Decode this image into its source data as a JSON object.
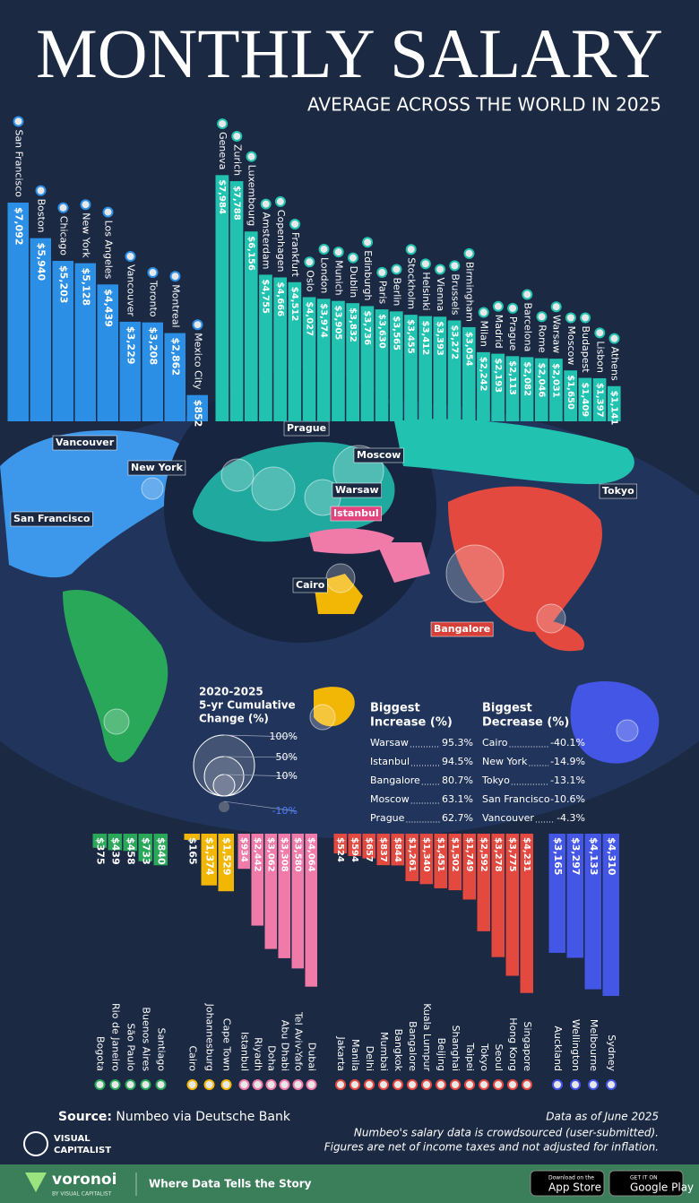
{
  "header": {
    "title": "MONTHLY SALARY",
    "subtitle": "AVERAGE ACROSS THE WORLD IN 2025"
  },
  "chart_data": [
    {
      "type": "bar",
      "color": "#2b8fe6",
      "categories": [
        "San Francisco",
        "Boston",
        "Chicago",
        "New York",
        "Los Angeles",
        "Vancouver",
        "Toronto",
        "Montreal",
        "Mexico City"
      ],
      "values": [
        7092,
        5940,
        5203,
        5128,
        4439,
        3229,
        3208,
        2862,
        852
      ],
      "value_labels": [
        "$7,092",
        "$5,940",
        "$5,203",
        "$5,128",
        "$4,439",
        "$3,229",
        "$3,208",
        "$2,862",
        "$852"
      ]
    },
    {
      "type": "bar",
      "color": "#22c2b0",
      "categories": [
        "Geneva",
        "Zurich",
        "Luxembourg",
        "Amsterdam",
        "Copenhagen",
        "Frankfurt",
        "Oslo",
        "London",
        "Munich",
        "Dublin",
        "Edinburgh",
        "Paris",
        "Berlin",
        "Stockholm",
        "Helsinki",
        "Vienna",
        "Brussels",
        "Birmingham",
        "Milan",
        "Madrid",
        "Prague",
        "Barcelona",
        "Rome",
        "Warsaw",
        "Moscow",
        "Budapest",
        "Lisbon",
        "Athens"
      ],
      "values": [
        7984,
        7788,
        6156,
        4755,
        4666,
        4512,
        4027,
        3974,
        3905,
        3832,
        3736,
        3630,
        3565,
        3455,
        3412,
        3393,
        3272,
        3054,
        2242,
        2193,
        2113,
        2082,
        2046,
        2031,
        1650,
        1409,
        1397,
        1141
      ],
      "value_labels": [
        "$7,984",
        "$7,788",
        "$6,156",
        "$4,755",
        "$4,666",
        "$4,512",
        "$4,027",
        "$3,974",
        "$3,905",
        "$3,832",
        "$3,736",
        "$3,630",
        "$3,565",
        "$3,455",
        "$3,412",
        "$3,393",
        "$3,272",
        "$3,054",
        "$2,242",
        "$2,193",
        "$2,113",
        "$2,082",
        "$2,046",
        "$2,031",
        "$1,650",
        "$1,409",
        "$1,397",
        "$1,141"
      ]
    },
    {
      "type": "bar",
      "color": "#2aa85a",
      "categories": [
        "Bogota",
        "Rio de Janeiro",
        "São Paulo",
        "Buenos Aires",
        "Santiago"
      ],
      "values": [
        375,
        439,
        458,
        733,
        840
      ],
      "value_labels": [
        "$375",
        "$439",
        "$458",
        "$733",
        "$840"
      ]
    },
    {
      "type": "bar",
      "color": "#f2b705",
      "categories": [
        "Cairo",
        "Johannesburg",
        "Cape Town"
      ],
      "values": [
        165,
        1374,
        1529
      ],
      "value_labels": [
        "$165",
        "$1,374",
        "$1,529"
      ]
    },
    {
      "type": "bar",
      "color": "#f07aa8",
      "categories": [
        "Istanbul",
        "Riyadh",
        "Doha",
        "Abu Dhabi",
        "Tel Aviv-Yafo",
        "Dubai"
      ],
      "values": [
        934,
        2442,
        3062,
        3308,
        3580,
        4064
      ],
      "value_labels": [
        "$934",
        "$2,442",
        "$3,062",
        "$3,308",
        "$3,580",
        "$4,064"
      ]
    },
    {
      "type": "bar",
      "color": "#e4493f",
      "categories": [
        "Jakarta",
        "Manila",
        "Delhi",
        "Mumbai",
        "Bangkok",
        "Bangalore",
        "Kuala Lumpur",
        "Beijing",
        "Shanghai",
        "Taipei",
        "Tokyo",
        "Seoul",
        "Hong Kong",
        "Singapore"
      ],
      "values": [
        524,
        594,
        657,
        837,
        844,
        1261,
        1340,
        1451,
        1502,
        1749,
        2592,
        3278,
        3775,
        4231
      ],
      "value_labels": [
        "$524",
        "$594",
        "$657",
        "$837",
        "$844",
        "$1,261",
        "$1,340",
        "$1,451",
        "$1,502",
        "$1,749",
        "$2,592",
        "$3,278",
        "$3,775",
        "$4,231"
      ]
    },
    {
      "type": "bar",
      "color": "#4356e6",
      "categories": [
        "Auckland",
        "Wellington",
        "Melbourne",
        "Sydney"
      ],
      "values": [
        3165,
        3297,
        4133,
        4310
      ],
      "value_labels": [
        "$3,165",
        "$3,297",
        "$4,133",
        "$4,310"
      ]
    }
  ],
  "map": {
    "labels": [
      "Vancouver",
      "New York",
      "San Francisco",
      "Prague",
      "Moscow",
      "Warsaw",
      "Istanbul",
      "Cairo",
      "Tokyo",
      "Bangalore"
    ]
  },
  "legend": {
    "title": [
      "2020-2025",
      "5-yr Cumulative",
      "Change (%)"
    ],
    "sizes": [
      "100%",
      "50%",
      "10%",
      "-10%"
    ]
  },
  "increase": {
    "title": [
      "Biggest",
      "Increase (%)"
    ],
    "rows": [
      [
        "Warsaw",
        "95.3%"
      ],
      [
        "Istanbul",
        "94.5%"
      ],
      [
        "Bangalore",
        "80.7%"
      ],
      [
        "Moscow",
        "63.1%"
      ],
      [
        "Prague",
        "62.7%"
      ]
    ]
  },
  "decrease": {
    "title": [
      "Biggest",
      "Decrease (%)"
    ],
    "rows": [
      [
        "Cairo",
        "-40.1%"
      ],
      [
        "New York",
        "-14.9%"
      ],
      [
        "Tokyo",
        "-13.1%"
      ],
      [
        "San Francisco",
        "-10.6%"
      ],
      [
        "Vancouver",
        "-4.3%"
      ]
    ]
  },
  "footer": {
    "source_label": "Source:",
    "source": "Numbeo via Deutsche Bank",
    "date": "Data as of June 2025",
    "notes": [
      "Numbeo's salary data is crowdsourced (user-submitted).",
      "Figures are net of income taxes and not adjusted for inflation."
    ],
    "brand": [
      "VISUAL",
      "CAPITALIST"
    ],
    "voronoi": "voronoi",
    "voronoi_by": "BY VISUAL CAPITALIST",
    "tagline": "Where Data Tells the Story",
    "app_store": [
      "Download on the",
      "App Store"
    ],
    "google_play": [
      "GET IT ON",
      "Google Play"
    ]
  }
}
